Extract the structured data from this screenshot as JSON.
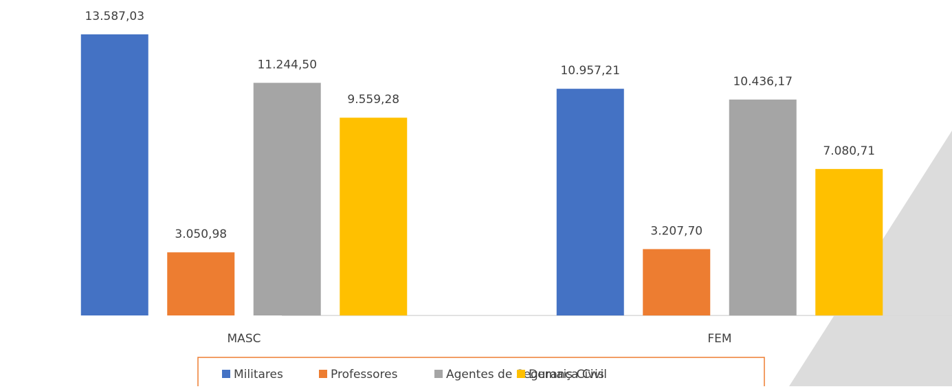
{
  "chart_data": {
    "type": "bar",
    "categories": [
      "MASC",
      "FEM"
    ],
    "series": [
      {
        "name": "Militares",
        "color": "#4472c4",
        "values": [
          13587.03,
          10957.21
        ],
        "value_labels": [
          "13.587,03",
          "10.957,21"
        ]
      },
      {
        "name": "Professores",
        "color": "#ed7d31",
        "values": [
          3050.98,
          3207.7
        ],
        "value_labels": [
          "3.050,98",
          "3.207,70"
        ]
      },
      {
        "name": "Agentes de Segurança Civil",
        "color": "#a5a5a5",
        "values": [
          11244.5,
          10436.17
        ],
        "value_labels": [
          "11.244,50",
          "10.436,17"
        ]
      },
      {
        "name": "Demais Civis",
        "color": "#ffc000",
        "values": [
          9559.28,
          7080.71
        ],
        "value_labels": [
          "9.559,28",
          "7.080,71"
        ]
      }
    ],
    "legend": "bottom"
  }
}
